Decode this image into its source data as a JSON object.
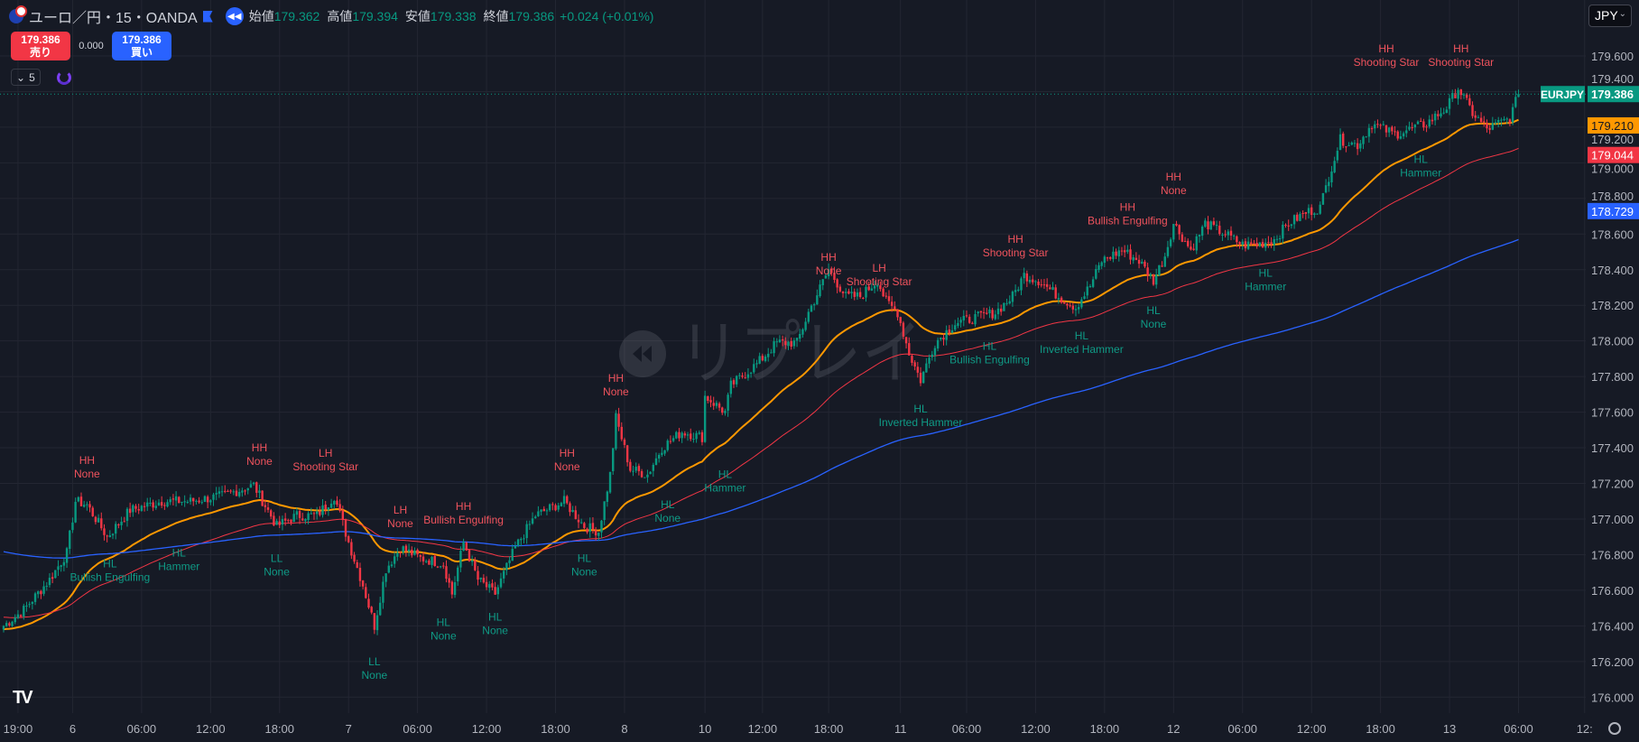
{
  "header": {
    "symbol_title": "ユーロ／円・15・OANDA",
    "ohlc": [
      {
        "k": "始値",
        "v": "179.362"
      },
      {
        "k": "高値",
        "v": "179.394"
      },
      {
        "k": "安値",
        "v": "179.338"
      },
      {
        "k": "終値",
        "v": "179.386"
      }
    ],
    "change": "+0.024 (+0.01%)"
  },
  "trade": {
    "sell_price": "179.386",
    "sell_label": "売り",
    "spread": "0.000",
    "buy_price": "179.386",
    "buy_label": "買い"
  },
  "indicator_toggle": "5",
  "currency": "JPY",
  "watermark": "リプレイ",
  "colors": {
    "bg": "#161a25",
    "up": "#089981",
    "down": "#f23645",
    "ma_fast": "#ff9800",
    "ma_mid": "#f23645",
    "ma_slow": "#2962ff",
    "grid": "#232632"
  },
  "chart_data": {
    "type": "candlestick",
    "symbol_tag": "EURJPY",
    "last_price": "179.386",
    "ylim": [
      175.93,
      179.97
    ],
    "price_ticks": [
      "179.600",
      "179.400",
      "179.200",
      "179.000",
      "178.800",
      "178.600",
      "178.400",
      "178.200",
      "178.000",
      "177.800",
      "177.600",
      "177.400",
      "177.200",
      "177.000",
      "176.800",
      "176.600",
      "176.400",
      "176.200",
      "176.000"
    ],
    "time_ticks": [
      {
        "bar": 5,
        "label": "19:00"
      },
      {
        "bar": 24,
        "label": "6"
      },
      {
        "bar": 48,
        "label": "06:00"
      },
      {
        "bar": 72,
        "label": "12:00"
      },
      {
        "bar": 96,
        "label": "18:00"
      },
      {
        "bar": 120,
        "label": "7"
      },
      {
        "bar": 144,
        "label": "06:00"
      },
      {
        "bar": 168,
        "label": "12:00"
      },
      {
        "bar": 192,
        "label": "18:00"
      },
      {
        "bar": 216,
        "label": "8"
      },
      {
        "bar": 244,
        "label": "10"
      },
      {
        "bar": 264,
        "label": "12:00"
      },
      {
        "bar": 287,
        "label": "18:00"
      },
      {
        "bar": 312,
        "label": "11"
      },
      {
        "bar": 335,
        "label": "06:00"
      },
      {
        "bar": 359,
        "label": "12:00"
      },
      {
        "bar": 383,
        "label": "18:00"
      },
      {
        "bar": 407,
        "label": "12"
      },
      {
        "bar": 431,
        "label": "06:00"
      },
      {
        "bar": 455,
        "label": "12:00"
      },
      {
        "bar": 479,
        "label": "18:00"
      },
      {
        "bar": 503,
        "label": "13"
      },
      {
        "bar": 527,
        "label": "06:00"
      },
      {
        "bar": 550,
        "label": "12:"
      }
    ],
    "close_path": [
      [
        0,
        176.4
      ],
      [
        7,
        176.49
      ],
      [
        16,
        176.66
      ],
      [
        22,
        176.81
      ],
      [
        25,
        177.1
      ],
      [
        29,
        177.08
      ],
      [
        36,
        176.9
      ],
      [
        44,
        177.05
      ],
      [
        55,
        177.1
      ],
      [
        65,
        177.1
      ],
      [
        76,
        177.13
      ],
      [
        87,
        177.19
      ],
      [
        95,
        176.96
      ],
      [
        102,
        177.02
      ],
      [
        109,
        177.02
      ],
      [
        115,
        177.13
      ],
      [
        120,
        176.87
      ],
      [
        125,
        176.63
      ],
      [
        129,
        176.4
      ],
      [
        133,
        176.72
      ],
      [
        138,
        176.84
      ],
      [
        145,
        176.78
      ],
      [
        153,
        176.75
      ],
      [
        156,
        176.58
      ],
      [
        160,
        176.87
      ],
      [
        165,
        176.66
      ],
      [
        171,
        176.58
      ],
      [
        178,
        176.84
      ],
      [
        185,
        177.02
      ],
      [
        195,
        177.1
      ],
      [
        202,
        176.96
      ],
      [
        207,
        176.93
      ],
      [
        211,
        177.25
      ],
      [
        213,
        177.57
      ],
      [
        218,
        177.28
      ],
      [
        224,
        177.25
      ],
      [
        229,
        177.4
      ],
      [
        236,
        177.49
      ],
      [
        243,
        177.46
      ],
      [
        244,
        177.69
      ],
      [
        251,
        177.6
      ],
      [
        253,
        177.75
      ],
      [
        262,
        177.87
      ],
      [
        269,
        177.99
      ],
      [
        276,
        177.99
      ],
      [
        280,
        178.16
      ],
      [
        287,
        178.4
      ],
      [
        293,
        178.25
      ],
      [
        298,
        178.25
      ],
      [
        304,
        178.34
      ],
      [
        307,
        178.22
      ],
      [
        311,
        178.16
      ],
      [
        315,
        177.93
      ],
      [
        319,
        177.78
      ],
      [
        324,
        177.99
      ],
      [
        331,
        178.1
      ],
      [
        338,
        178.13
      ],
      [
        345,
        178.16
      ],
      [
        351,
        178.25
      ],
      [
        355,
        178.37
      ],
      [
        360,
        178.34
      ],
      [
        367,
        178.25
      ],
      [
        373,
        178.19
      ],
      [
        378,
        178.31
      ],
      [
        382,
        178.45
      ],
      [
        389,
        178.51
      ],
      [
        395,
        178.45
      ],
      [
        400,
        178.34
      ],
      [
        404,
        178.48
      ],
      [
        407,
        178.66
      ],
      [
        413,
        178.51
      ],
      [
        418,
        178.66
      ],
      [
        425,
        178.6
      ],
      [
        431,
        178.54
      ],
      [
        436,
        178.54
      ],
      [
        442,
        178.57
      ],
      [
        447,
        178.66
      ],
      [
        453,
        178.72
      ],
      [
        458,
        178.75
      ],
      [
        462,
        178.98
      ],
      [
        465,
        179.13
      ],
      [
        471,
        179.1
      ],
      [
        476,
        179.22
      ],
      [
        484,
        179.16
      ],
      [
        495,
        179.22
      ],
      [
        502,
        179.31
      ],
      [
        506,
        179.42
      ],
      [
        511,
        179.28
      ],
      [
        516,
        179.19
      ],
      [
        524,
        179.25
      ],
      [
        527,
        179.386
      ]
    ],
    "moving_averages": [
      {
        "name": "fast",
        "period": 40,
        "seed": 176.38,
        "last_label": "179.210"
      },
      {
        "name": "mid",
        "period": 90,
        "seed": 176.45,
        "last_label": "179.044"
      },
      {
        "name": "slow",
        "period": 260,
        "seed": 176.82,
        "last_label": "178.729"
      }
    ],
    "annotations": [
      {
        "bar": 29,
        "price": 177.33,
        "l1": "HH",
        "l2": "None",
        "kind": "high"
      },
      {
        "bar": 37,
        "price": 176.75,
        "l1": "HL",
        "l2": "Bullish Engulfing",
        "kind": "low"
      },
      {
        "bar": 61,
        "price": 176.81,
        "l1": "HL",
        "l2": "Hammer",
        "kind": "low"
      },
      {
        "bar": 89,
        "price": 177.4,
        "l1": "HH",
        "l2": "None",
        "kind": "high"
      },
      {
        "bar": 112,
        "price": 177.37,
        "l1": "LH",
        "l2": "Shooting Star",
        "kind": "high"
      },
      {
        "bar": 95,
        "price": 176.78,
        "l1": "LL",
        "l2": "None",
        "kind": "low"
      },
      {
        "bar": 138,
        "price": 177.05,
        "l1": "LH",
        "l2": "None",
        "kind": "high"
      },
      {
        "bar": 160,
        "price": 177.07,
        "l1": "HH",
        "l2": "Bullish Engulfing",
        "kind": "high"
      },
      {
        "bar": 129,
        "price": 176.2,
        "l1": "LL",
        "l2": "None",
        "kind": "low"
      },
      {
        "bar": 153,
        "price": 176.42,
        "l1": "HL",
        "l2": "None",
        "kind": "low"
      },
      {
        "bar": 171,
        "price": 176.45,
        "l1": "HL",
        "l2": "None",
        "kind": "low"
      },
      {
        "bar": 196,
        "price": 177.37,
        "l1": "HH",
        "l2": "None",
        "kind": "high"
      },
      {
        "bar": 202,
        "price": 176.78,
        "l1": "HL",
        "l2": "None",
        "kind": "low"
      },
      {
        "bar": 213,
        "price": 177.79,
        "l1": "HH",
        "l2": "None",
        "kind": "high"
      },
      {
        "bar": 231,
        "price": 177.08,
        "l1": "HL",
        "l2": "None",
        "kind": "low"
      },
      {
        "bar": 251,
        "price": 177.25,
        "l1": "HL",
        "l2": "Hammer",
        "kind": "low"
      },
      {
        "bar": 287,
        "price": 178.47,
        "l1": "HH",
        "l2": "None",
        "kind": "high"
      },
      {
        "bar": 304,
        "price": 178.41,
        "l1": "LH",
        "l2": "Shooting Star",
        "kind": "high"
      },
      {
        "bar": 319,
        "price": 177.66,
        "l1": "HL",
        "l2": "Inverted Hammer",
        "kind": "low"
      },
      {
        "bar": 343,
        "price": 177.97,
        "l1": "HL",
        "l2": "Bullish Engulfing",
        "kind": "low"
      },
      {
        "bar": 352,
        "price": 178.57,
        "l1": "HH",
        "l2": "Shooting Star",
        "kind": "high"
      },
      {
        "bar": 375,
        "price": 178.03,
        "l1": "HL",
        "l2": "Inverted Hammer",
        "kind": "low"
      },
      {
        "bar": 391,
        "price": 178.75,
        "l1": "HH",
        "l2": "Bullish Engulfing",
        "kind": "high"
      },
      {
        "bar": 407,
        "price": 178.92,
        "l1": "HH",
        "l2": "None",
        "kind": "high"
      },
      {
        "bar": 400,
        "price": 178.17,
        "l1": "HL",
        "l2": "None",
        "kind": "low"
      },
      {
        "bar": 439,
        "price": 178.38,
        "l1": "HL",
        "l2": "Hammer",
        "kind": "low"
      },
      {
        "bar": 481,
        "price": 179.64,
        "l1": "HH",
        "l2": "Shooting Star",
        "kind": "high"
      },
      {
        "bar": 507,
        "price": 179.64,
        "l1": "HH",
        "l2": "Shooting Star",
        "kind": "high"
      },
      {
        "bar": 493,
        "price": 179.02,
        "l1": "HL",
        "l2": "Hammer",
        "kind": "low"
      }
    ]
  }
}
